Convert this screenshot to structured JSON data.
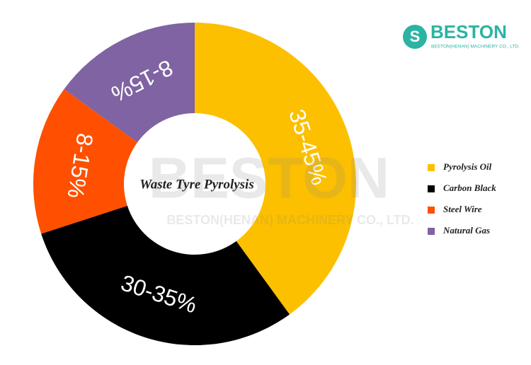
{
  "chart_data": {
    "type": "donut",
    "title": "Waste Tyre Pyrolysis",
    "categories": [
      "Pyrolysis Oil",
      "Carbon Black",
      "Steel Wire",
      "Natural Gas"
    ],
    "values": [
      40,
      30,
      15,
      15
    ],
    "value_labels": [
      "35-45%",
      "30-35%",
      "8-15%",
      "8-15%"
    ],
    "colors": [
      "#fcc000",
      "#000000",
      "#fe5000",
      "#7f63a2"
    ],
    "legend": "right"
  },
  "logo": {
    "name": "BESTON",
    "company": "BESTON(HENAN) MACHINERY CO., LTD."
  },
  "watermark": {
    "name": "BESTON",
    "company": "BESTON(HENAN) MACHINERY CO., LTD."
  }
}
